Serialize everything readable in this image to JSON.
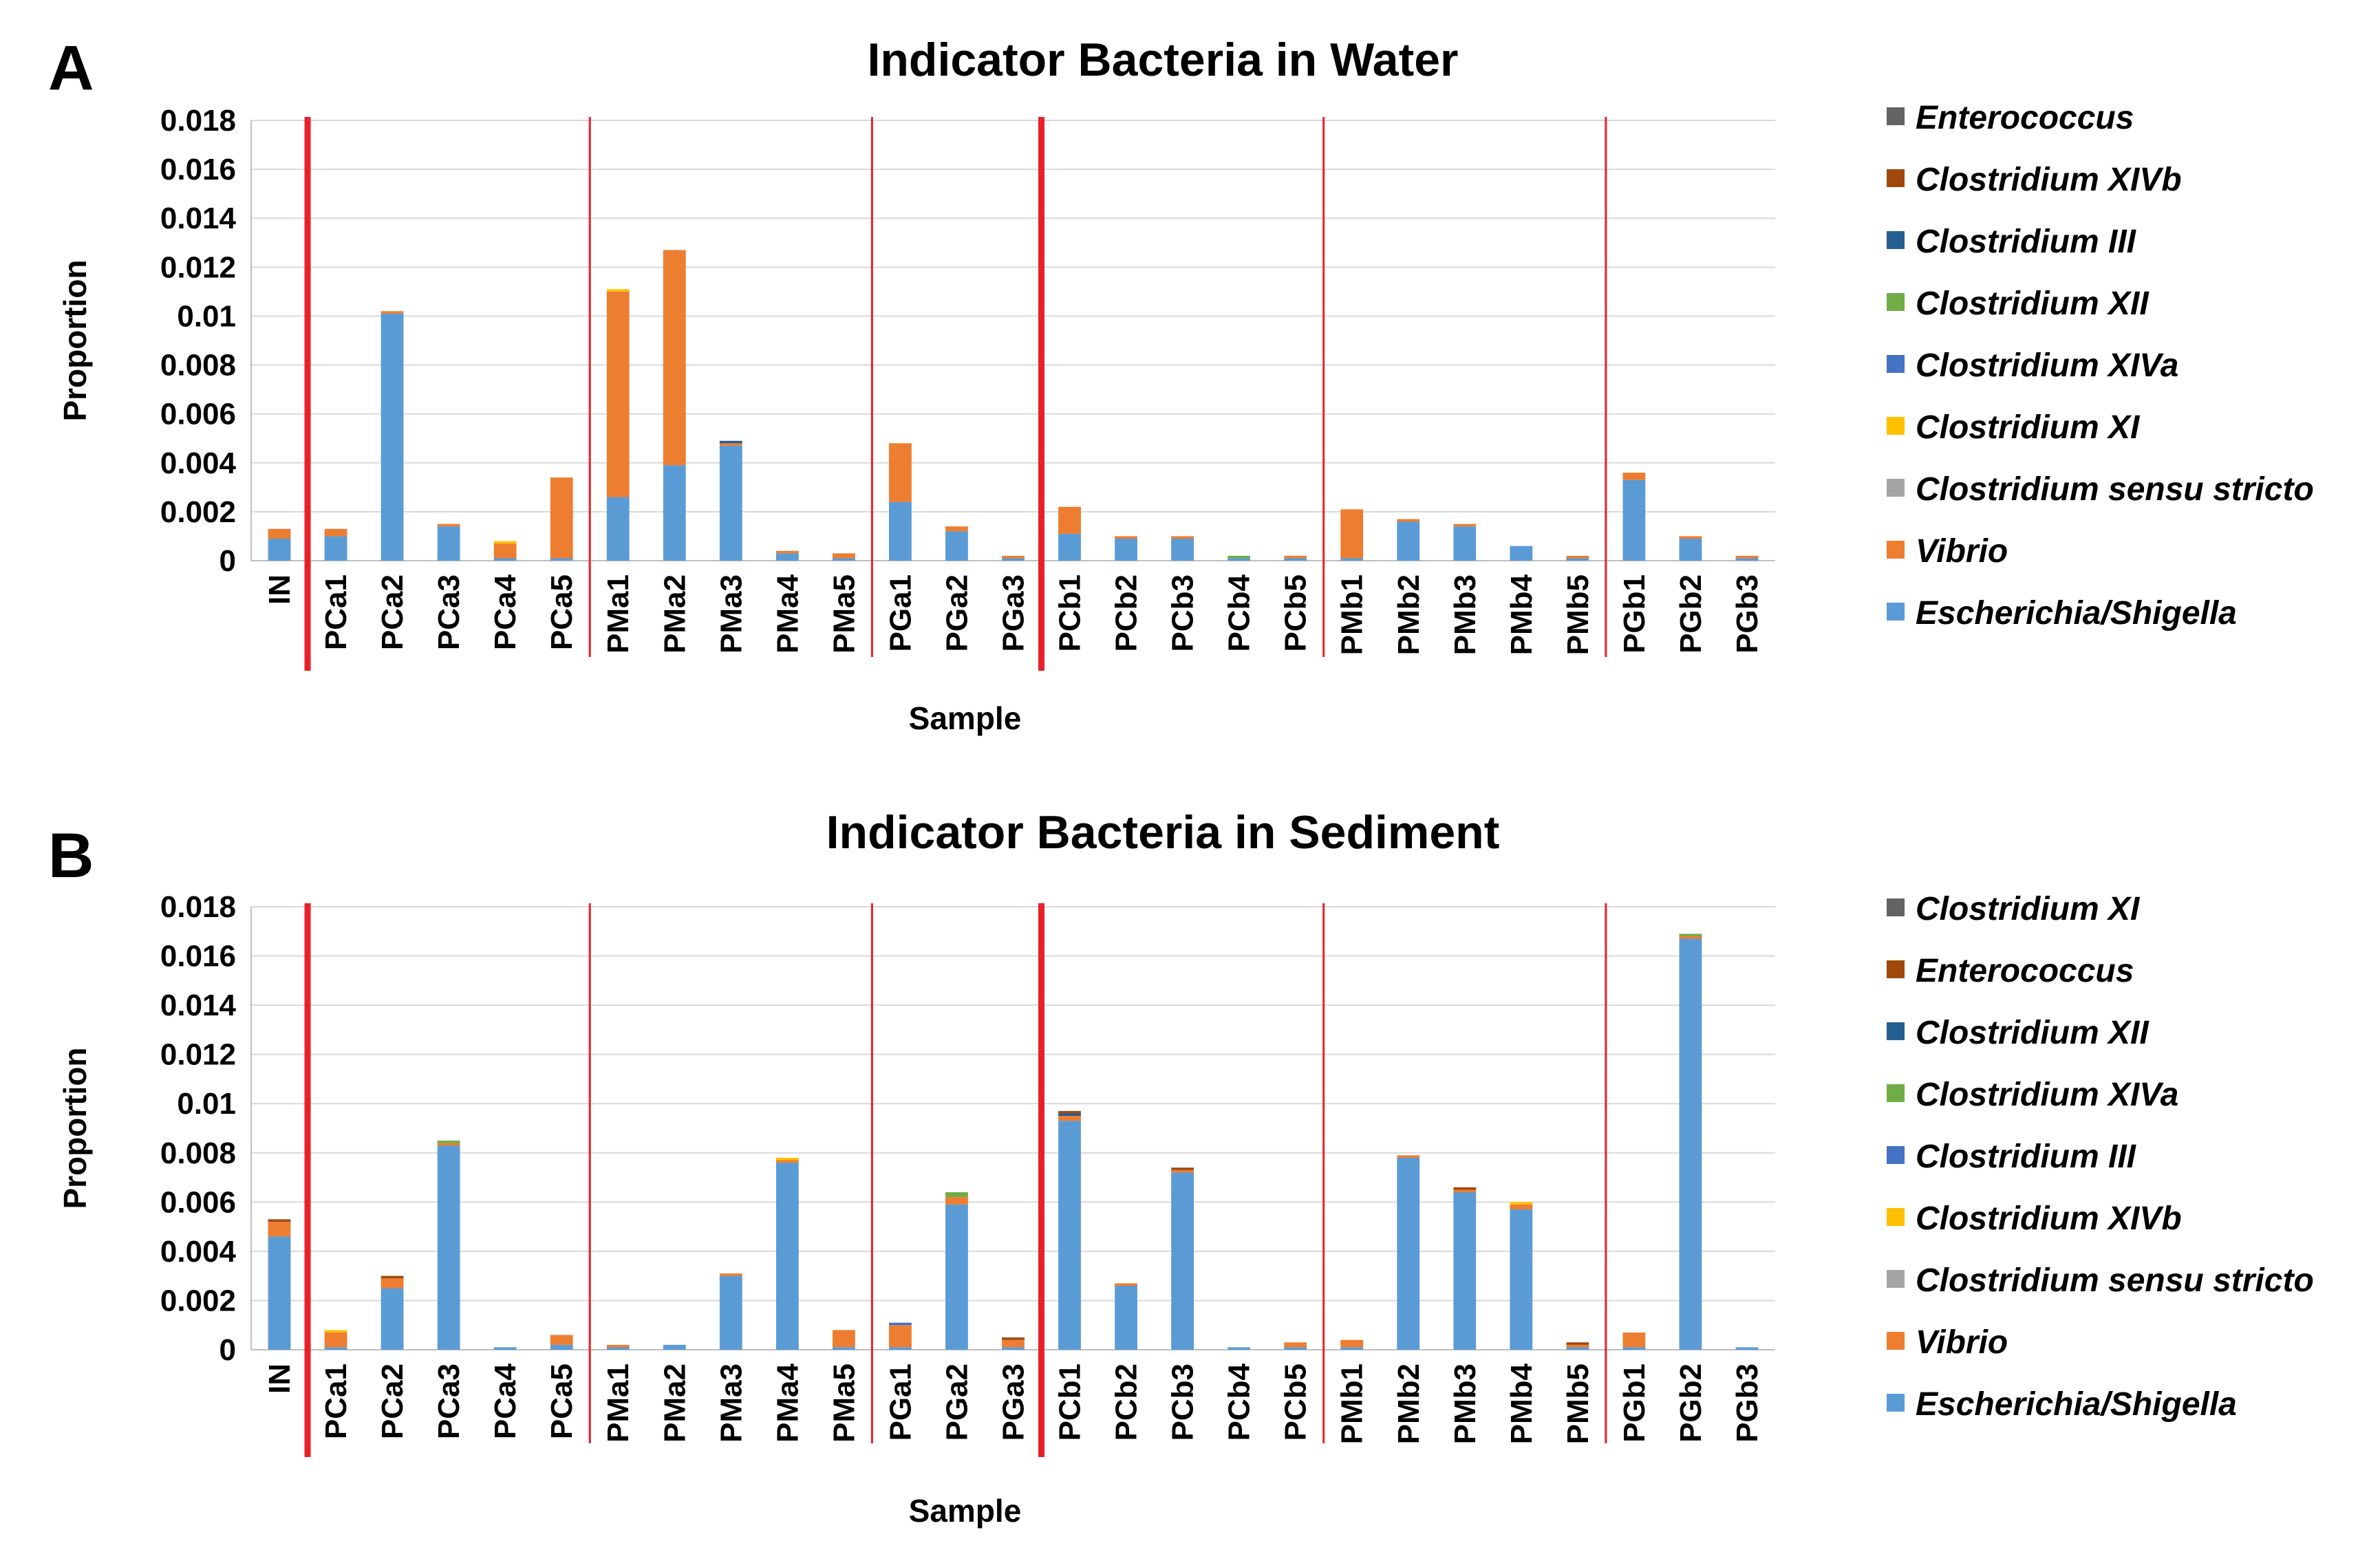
{
  "chart_data": [
    {
      "panel": "A",
      "type": "bar",
      "stacked": true,
      "title": "Indicator Bacteria in Water",
      "xlabel": "Sample",
      "ylabel": "Proportion",
      "ylim": [
        0,
        0.018
      ],
      "yticks": [
        "0",
        "0.002",
        "0.004",
        "0.006",
        "0.008",
        "0.01",
        "0.012",
        "0.014",
        "0.016",
        "0.018"
      ],
      "grid": true,
      "legend_position": "right",
      "categories": [
        "IN",
        "PCa1",
        "PCa2",
        "PCa3",
        "PCa4",
        "PCa5",
        "PMa1",
        "PMa2",
        "PMa3",
        "PMa4",
        "PMa5",
        "PGa1",
        "PGa2",
        "PGa3",
        "PCb1",
        "PCb2",
        "PCb3",
        "PCb4",
        "PCb5",
        "PMb1",
        "PMb2",
        "PMb3",
        "PMb4",
        "PMb5",
        "PGb1",
        "PGb2",
        "PGb3"
      ],
      "separators": [
        {
          "after": "IN",
          "style": "thick"
        },
        {
          "after": "PCa5",
          "style": "thin"
        },
        {
          "after": "PMa5",
          "style": "thin"
        },
        {
          "after": "PGa3",
          "style": "thick"
        },
        {
          "after": "PCb5",
          "style": "thin"
        },
        {
          "after": "PMb5",
          "style": "thin"
        }
      ],
      "series": [
        {
          "name": "Escherichia/Shigella",
          "color": "#5b9bd5",
          "values": [
            0.0009,
            0.001,
            0.0101,
            0.0014,
            0.0001,
            0.0001,
            0.0026,
            0.0039,
            0.0047,
            0.0003,
            0.0001,
            0.0024,
            0.0012,
            0.0001,
            0.0011,
            0.0009,
            0.0009,
            0.0001,
            0.0001,
            0.0001,
            0.0016,
            0.0014,
            0.0006,
            0.0001,
            0.0033,
            0.0009,
            0.0001
          ]
        },
        {
          "name": "Vibrio",
          "color": "#ed7d31",
          "values": [
            0.0004,
            0.0003,
            0.0001,
            0.0001,
            0.0006,
            0.0033,
            0.0084,
            0.0088,
            0.0001,
            0.0001,
            0.0002,
            0.0024,
            0.0002,
            0.0001,
            0.0011,
            0.0001,
            0.0001,
            0,
            0.0001,
            0.002,
            0.0001,
            0.0001,
            0,
            0.0001,
            0.0003,
            0.0001,
            0.0001
          ]
        },
        {
          "name": "Clostridium sensu stricto",
          "color": "#a5a5a5",
          "values": [
            0,
            0,
            0,
            0,
            0,
            0,
            0,
            0,
            0,
            0,
            0,
            0,
            0,
            0,
            0,
            0,
            0,
            0,
            0,
            0,
            0,
            0,
            0,
            0,
            0,
            0,
            0
          ]
        },
        {
          "name": "Clostridium XI",
          "color": "#ffc000",
          "values": [
            0,
            0,
            0,
            0,
            0.0001,
            0,
            0.0001,
            0,
            0,
            0,
            0,
            0,
            0,
            0,
            0,
            0,
            0,
            0,
            0,
            0,
            0,
            0,
            0,
            0,
            0,
            0,
            0
          ]
        },
        {
          "name": "Clostridium XIVa",
          "color": "#4472c4",
          "values": [
            0,
            0,
            0,
            0,
            0,
            0,
            0,
            0,
            0,
            0,
            0,
            0,
            0,
            0,
            0,
            0,
            0,
            0,
            0,
            0,
            0,
            0,
            0,
            0,
            0,
            0,
            0
          ]
        },
        {
          "name": "Clostridium XII",
          "color": "#70ad47",
          "values": [
            0,
            0,
            0,
            0,
            0,
            0,
            0,
            0,
            0,
            0,
            0,
            0,
            0,
            0,
            0,
            0,
            0,
            0.0001,
            0,
            0,
            0,
            0,
            0,
            0,
            0,
            0,
            0
          ]
        },
        {
          "name": "Clostridium III",
          "color": "#255e91",
          "values": [
            0,
            0,
            0,
            0,
            0,
            0,
            0,
            0,
            0.0001,
            0,
            0,
            0,
            0,
            0,
            0,
            0,
            0,
            0,
            0,
            0,
            0,
            0,
            0,
            0,
            0,
            0,
            0
          ]
        },
        {
          "name": "Clostridium XIVb",
          "color": "#9e480e",
          "values": [
            0,
            0,
            0,
            0,
            0,
            0,
            0,
            0,
            0,
            0,
            0,
            0,
            0,
            0,
            0,
            0,
            0,
            0,
            0,
            0,
            0,
            0,
            0,
            0,
            0,
            0,
            0
          ]
        },
        {
          "name": "Enterococcus",
          "color": "#636363",
          "values": [
            0,
            0,
            0,
            0,
            0,
            0,
            0,
            0,
            0,
            0,
            0,
            0,
            0,
            0,
            0,
            0,
            0,
            0,
            0,
            0,
            0,
            0,
            0,
            0,
            0,
            0,
            0
          ]
        }
      ],
      "legend_order": [
        "Enterococcus",
        "Clostridium XIVb",
        "Clostridium III",
        "Clostridium XII",
        "Clostridium XIVa",
        "Clostridium XI",
        "Clostridium sensu stricto",
        "Vibrio",
        "Escherichia/Shigella"
      ]
    },
    {
      "panel": "B",
      "type": "bar",
      "stacked": true,
      "title": "Indicator Bacteria in Sediment",
      "xlabel": "Sample",
      "ylabel": "Proportion",
      "ylim": [
        0,
        0.018
      ],
      "yticks": [
        "0",
        "0.002",
        "0.004",
        "0.006",
        "0.008",
        "0.01",
        "0.012",
        "0.014",
        "0.016",
        "0.018"
      ],
      "grid": true,
      "legend_position": "right",
      "categories": [
        "IN",
        "PCa1",
        "PCa2",
        "PCa3",
        "PCa4",
        "PCa5",
        "PMa1",
        "PMa2",
        "PMa3",
        "PMa4",
        "PMa5",
        "PGa1",
        "PGa2",
        "PGa3",
        "PCb1",
        "PCb2",
        "PCb3",
        "PCb4",
        "PCb5",
        "PMb1",
        "PMb2",
        "PMb3",
        "PMb4",
        "PMb5",
        "PGb1",
        "PGb2",
        "PGb3"
      ],
      "separators": [
        {
          "after": "IN",
          "style": "thick"
        },
        {
          "after": "PCa5",
          "style": "thin"
        },
        {
          "after": "PMa5",
          "style": "thin"
        },
        {
          "after": "PGa3",
          "style": "thick"
        },
        {
          "after": "PCb5",
          "style": "thin"
        },
        {
          "after": "PMb5",
          "style": "thin"
        }
      ],
      "series": [
        {
          "name": "Escherichia/Shigella",
          "color": "#5b9bd5",
          "values": [
            0.0046,
            0.0001,
            0.0025,
            0.0083,
            0.0001,
            0.0002,
            0.0001,
            0.0002,
            0.003,
            0.0076,
            0.0001,
            0.0001,
            0.0059,
            0.0001,
            0.0093,
            0.0026,
            0.0072,
            0.0001,
            0.0001,
            0.0001,
            0.0078,
            0.0064,
            0.0057,
            0.0001,
            0.0001,
            0.0167,
            0.0001
          ]
        },
        {
          "name": "Vibrio",
          "color": "#ed7d31",
          "values": [
            0.0006,
            0.0006,
            0.0004,
            0.0001,
            0,
            0.0004,
            0.0001,
            0,
            0.0001,
            0.0001,
            0.0007,
            0.0009,
            0.0003,
            0.0003,
            0.0002,
            0.0001,
            0.0001,
            0,
            0.0002,
            0.0003,
            0.0001,
            0.0001,
            0.0002,
            0.0001,
            0.0006,
            0.0001,
            0
          ]
        },
        {
          "name": "Clostridium sensu stricto",
          "color": "#a5a5a5",
          "values": [
            0,
            0,
            0,
            0,
            0,
            0,
            0,
            0,
            0,
            0,
            0,
            0,
            0,
            0,
            0,
            0,
            0,
            0,
            0,
            0,
            0,
            0,
            0,
            0,
            0,
            0,
            0
          ]
        },
        {
          "name": "Clostridium XIVb",
          "color": "#ffc000",
          "values": [
            0,
            0.0001,
            0,
            0,
            0,
            0,
            0,
            0,
            0,
            0.0001,
            0,
            0,
            0,
            0,
            0,
            0,
            0,
            0,
            0,
            0,
            0,
            0,
            0.0001,
            0,
            0,
            0,
            0
          ]
        },
        {
          "name": "Clostridium III",
          "color": "#4472c4",
          "values": [
            0,
            0,
            0,
            0,
            0,
            0,
            0,
            0,
            0,
            0,
            0,
            0.0001,
            0,
            0,
            0,
            0,
            0,
            0,
            0,
            0,
            0,
            0,
            0,
            0,
            0,
            0,
            0
          ]
        },
        {
          "name": "Clostridium XIVa",
          "color": "#70ad47",
          "values": [
            0,
            0,
            0,
            0.0001,
            0,
            0,
            0,
            0,
            0,
            0,
            0,
            0,
            0.0002,
            0,
            0,
            0,
            0,
            0,
            0,
            0,
            0,
            0,
            0,
            0,
            0,
            0.0001,
            0
          ]
        },
        {
          "name": "Clostridium XII",
          "color": "#255e91",
          "values": [
            0,
            0,
            0,
            0,
            0,
            0,
            0,
            0,
            0,
            0,
            0,
            0,
            0,
            0,
            0.0001,
            0,
            0,
            0,
            0,
            0,
            0,
            0,
            0,
            0,
            0,
            0,
            0
          ]
        },
        {
          "name": "Enterococcus",
          "color": "#9e480e",
          "values": [
            0.0001,
            0,
            0.0001,
            0,
            0,
            0,
            0,
            0,
            0,
            0,
            0,
            0,
            0,
            0.0001,
            0.0001,
            0,
            0.0001,
            0,
            0,
            0,
            0,
            0.0001,
            0,
            0.0001,
            0,
            0,
            0
          ]
        },
        {
          "name": "Clostridium XI",
          "color": "#636363",
          "values": [
            0,
            0,
            0,
            0,
            0,
            0,
            0,
            0,
            0,
            0,
            0,
            0,
            0,
            0,
            0,
            0,
            0,
            0,
            0,
            0,
            0,
            0,
            0,
            0,
            0,
            0,
            0
          ]
        }
      ],
      "legend_order": [
        "Clostridium XI",
        "Enterococcus",
        "Clostridium XII",
        "Clostridium XIVa",
        "Clostridium III",
        "Clostridium XIVb",
        "Clostridium sensu stricto",
        "Vibrio",
        "Escherichia/Shigella"
      ]
    }
  ]
}
